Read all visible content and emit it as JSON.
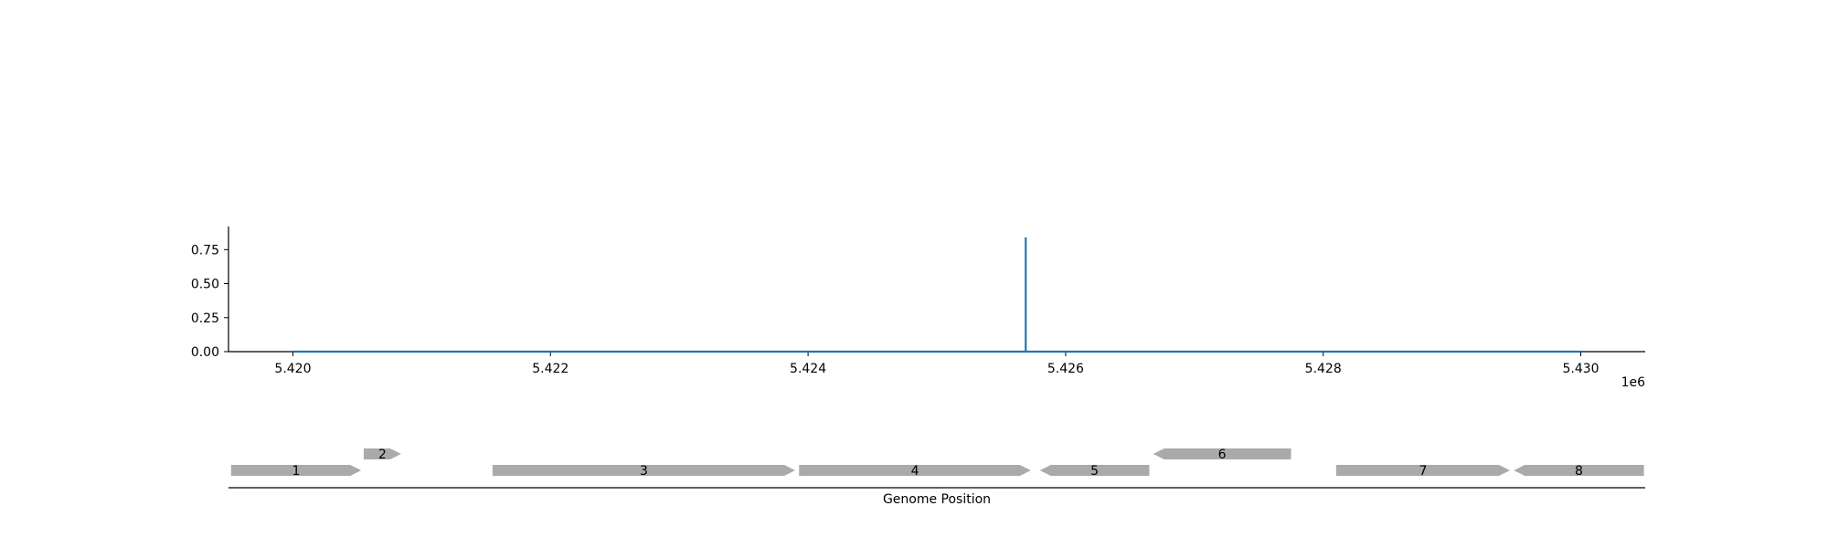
{
  "chart_data": [
    {
      "type": "line",
      "title": "",
      "xlabel": "",
      "ylabel": "",
      "x_offset_label": "1e6",
      "xlim": [
        5419500,
        5430500
      ],
      "ylim": [
        0,
        0.92
      ],
      "x_ticks": [
        5420000,
        5422000,
        5424000,
        5426000,
        5428000,
        5430000
      ],
      "x_tick_labels": [
        "5.420",
        "5.422",
        "5.424",
        "5.426",
        "5.428",
        "5.430"
      ],
      "y_ticks": [
        0,
        0.25,
        0.5,
        0.75
      ],
      "y_tick_labels": [
        "0.00",
        "0.25",
        "0.50",
        "0.75"
      ],
      "grid": false,
      "series_color": "#1f77b4",
      "series": [
        {
          "name": "",
          "x": [
            5420000,
            5425690,
            5425690,
            5425690,
            5430000
          ],
          "y": [
            0,
            0,
            0.84,
            0,
            0
          ]
        }
      ]
    },
    {
      "type": "gene-track",
      "xlabel": "Genome Position",
      "xlim": [
        5419500,
        5430500
      ],
      "feature_color": "#aaaaaa",
      "features": [
        {
          "label": "1",
          "start": 5419520,
          "end": 5420530,
          "strand": "+",
          "row": 0
        },
        {
          "label": "2",
          "start": 5420550,
          "end": 5420840,
          "strand": "+",
          "row": 1
        },
        {
          "label": "3",
          "start": 5421550,
          "end": 5423900,
          "strand": "+",
          "row": 0
        },
        {
          "label": "4",
          "start": 5423930,
          "end": 5425730,
          "strand": "+",
          "row": 0
        },
        {
          "label": "5",
          "start": 5425800,
          "end": 5426650,
          "strand": "-",
          "row": 0
        },
        {
          "label": "6",
          "start": 5426680,
          "end": 5427750,
          "strand": "-",
          "row": 1
        },
        {
          "label": "7",
          "start": 5428100,
          "end": 5429450,
          "strand": "+",
          "row": 0
        },
        {
          "label": "8",
          "start": 5429480,
          "end": 5430490,
          "strand": "-",
          "row": 0
        }
      ]
    }
  ]
}
